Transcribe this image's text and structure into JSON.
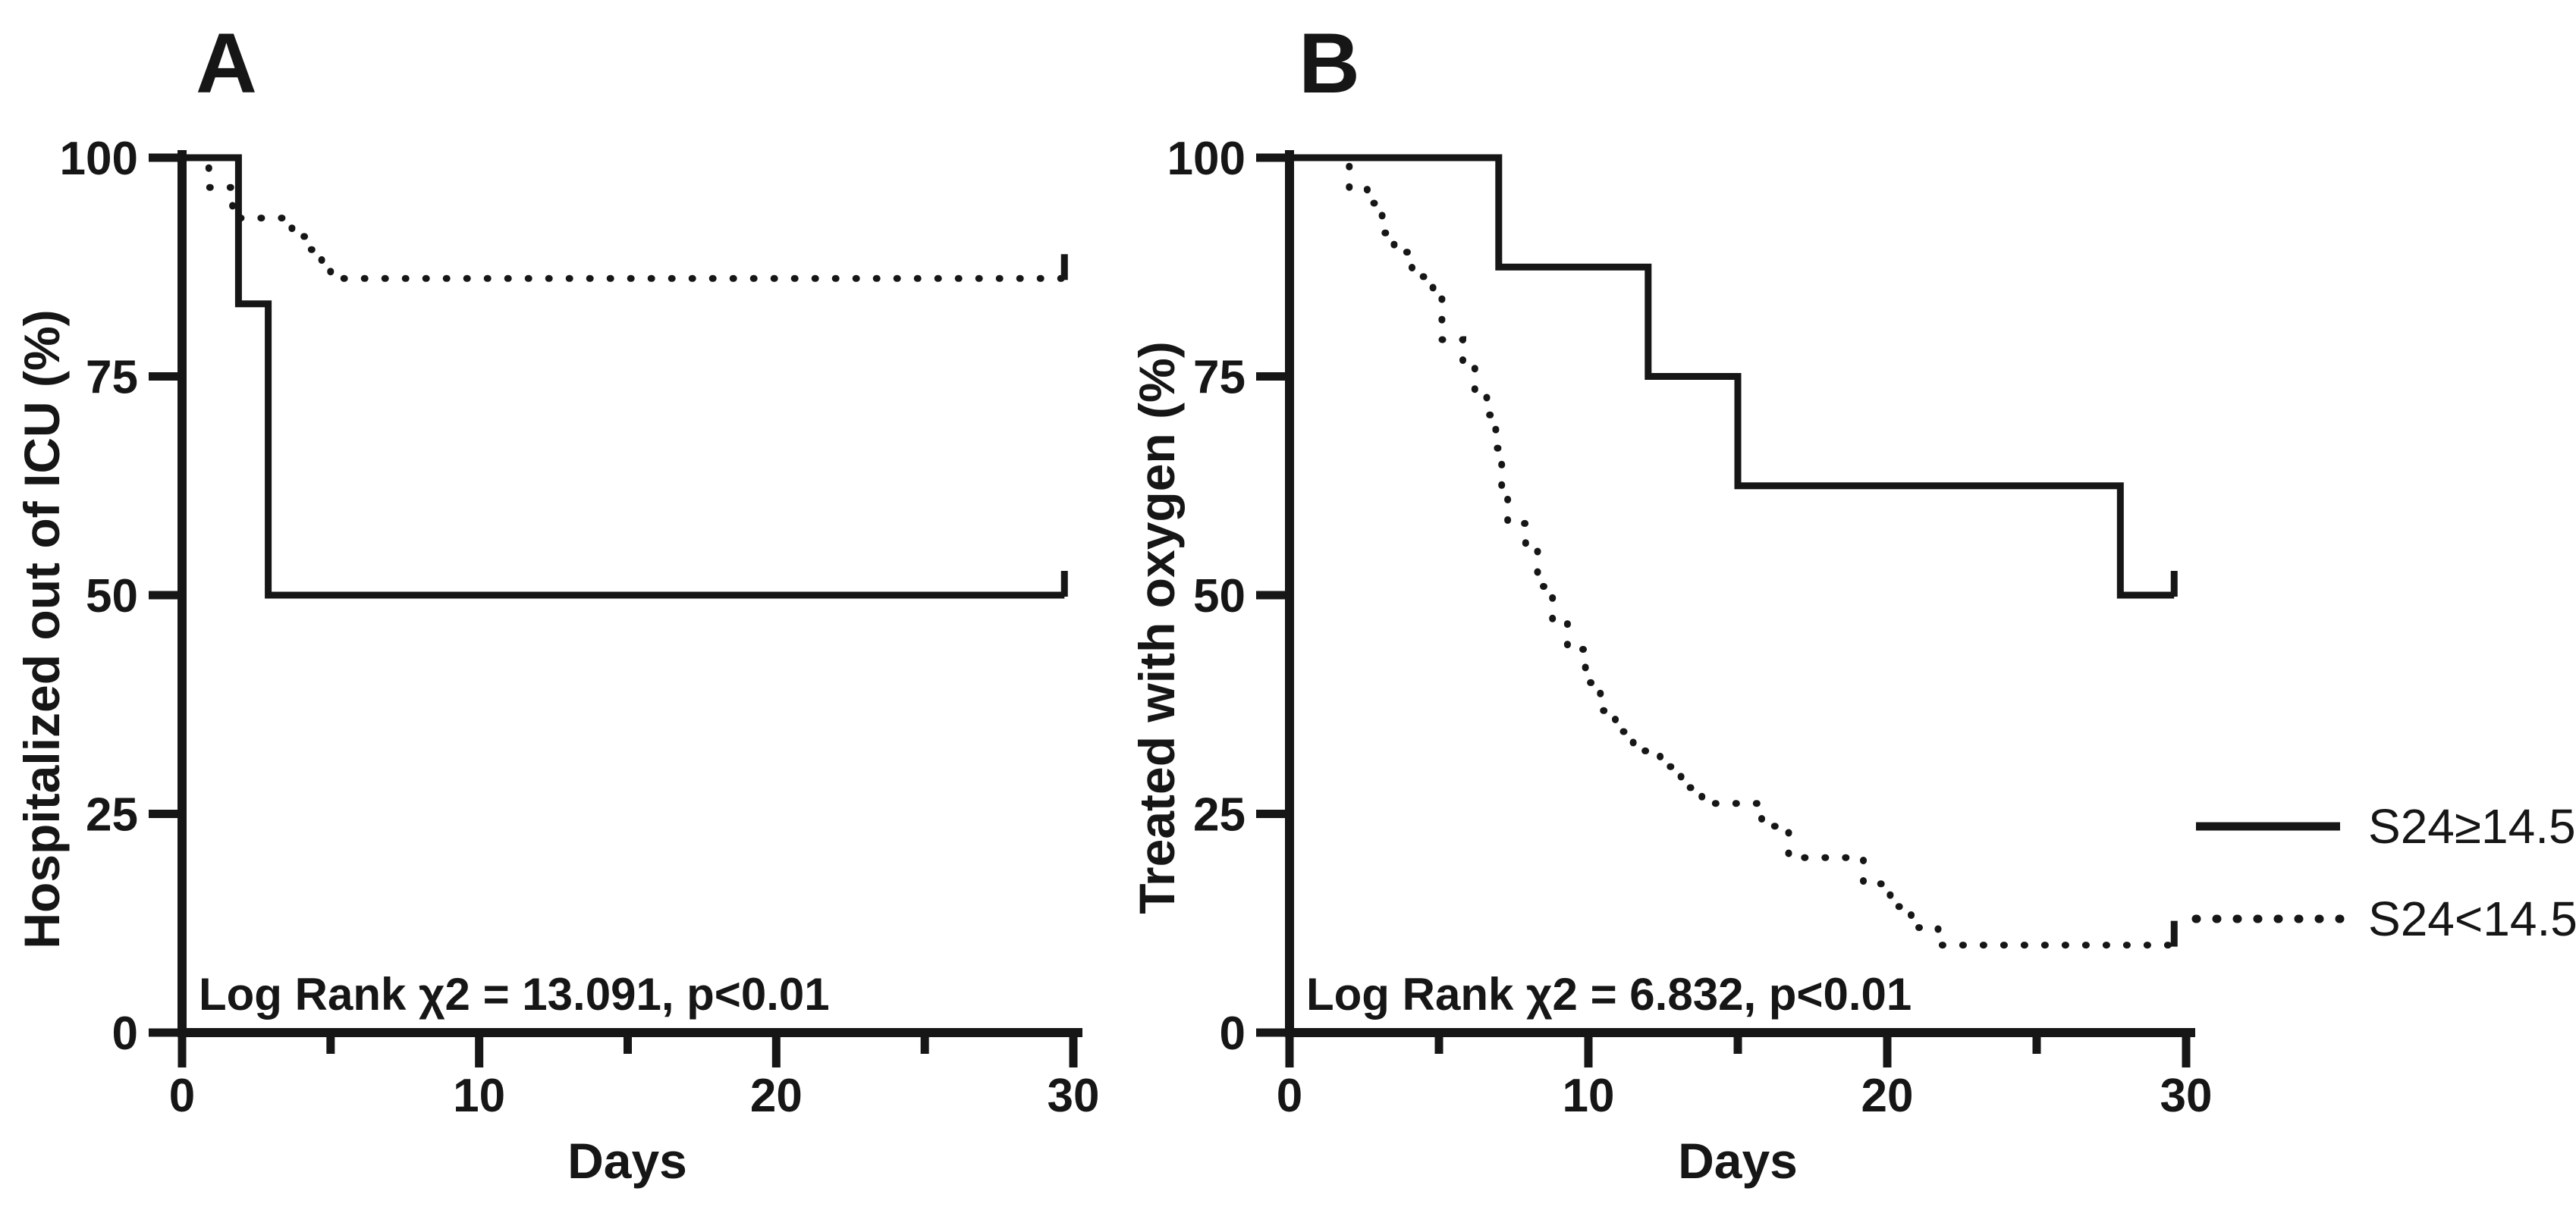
{
  "page": {
    "background": "#ffffff",
    "ink": "#161616"
  },
  "legend": {
    "position": "right-middle",
    "entries": [
      {
        "label": "S24≥14.5",
        "line_style": "solid"
      },
      {
        "label": "S24<14.5",
        "line_style": "dotted"
      }
    ]
  },
  "chart_data": [
    {
      "type": "line",
      "subtype": "kaplan_meier_step",
      "panel_label": "A",
      "ylabel": "Hospitalized out of ICU (%)",
      "xlabel": "Days",
      "annotation": "Log Rank χ2 = 13.091, p<0.01",
      "xlim": [
        0,
        30
      ],
      "ylim": [
        0,
        100
      ],
      "xticks": [
        0,
        10,
        20,
        30
      ],
      "xticks_minor": [
        5,
        15,
        25
      ],
      "yticks": [
        0,
        25,
        50,
        75,
        100
      ],
      "grid": false,
      "series": [
        {
          "name": "S24≥14.5",
          "style": "solid",
          "censored_at_end": true,
          "end_x": 29.7,
          "points": [
            [
              0,
              100
            ],
            [
              1.9,
              83.3
            ],
            [
              2.9,
              50
            ]
          ]
        },
        {
          "name": "S24<14.5",
          "style": "dotted",
          "censored_at_end": true,
          "end_x": 29.7,
          "points": [
            [
              0.55,
              100
            ],
            [
              0.9,
              96.6
            ],
            [
              1.7,
              93.1
            ],
            [
              3.7,
              91.0
            ],
            [
              4.3,
              89.5
            ],
            [
              4.7,
              88.0
            ],
            [
              5.0,
              86.2
            ]
          ]
        }
      ]
    },
    {
      "type": "line",
      "subtype": "kaplan_meier_step",
      "panel_label": "B",
      "ylabel": "Treated with oxygen (%)",
      "xlabel": "Days",
      "annotation": "Log Rank χ2 = 6.832, p<0.01",
      "xlim": [
        0,
        30
      ],
      "ylim": [
        0,
        100
      ],
      "xticks": [
        0,
        10,
        20,
        30
      ],
      "xticks_minor": [
        5,
        15,
        25
      ],
      "yticks": [
        0,
        25,
        50,
        75,
        100
      ],
      "grid": false,
      "series": [
        {
          "name": "S24≥14.5",
          "style": "solid",
          "censored_at_end": true,
          "end_x": 29.6,
          "points": [
            [
              0,
              100
            ],
            [
              7,
              87.5
            ],
            [
              12,
              75
            ],
            [
              15,
              62.5
            ],
            [
              27.8,
              50
            ]
          ]
        },
        {
          "name": "S24<14.5",
          "style": "dotted",
          "censored_at_end": true,
          "end_x": 29.6,
          "points": [
            [
              1.6,
              100
            ],
            [
              2.0,
              96.6
            ],
            [
              2.6,
              94.8
            ],
            [
              3.1,
              91.4
            ],
            [
              3.5,
              89.2
            ],
            [
              4.1,
              86.4
            ],
            [
              4.8,
              84.8
            ],
            [
              5.1,
              79.2
            ],
            [
              5.8,
              76.2
            ],
            [
              6.2,
              73.4
            ],
            [
              6.6,
              70.6
            ],
            [
              6.9,
              66.8
            ],
            [
              7.1,
              62.4
            ],
            [
              7.3,
              58.2
            ],
            [
              7.9,
              55.4
            ],
            [
              8.3,
              51.0
            ],
            [
              8.8,
              46.8
            ],
            [
              9.3,
              43.8
            ],
            [
              9.9,
              40.0
            ],
            [
              10.4,
              36.8
            ],
            [
              10.9,
              34.4
            ],
            [
              11.5,
              32.2
            ],
            [
              12.4,
              30.4
            ],
            [
              13.1,
              28.0
            ],
            [
              13.8,
              26.2
            ],
            [
              15.8,
              23.6
            ],
            [
              16.7,
              20.0
            ],
            [
              19.2,
              17.0
            ],
            [
              20.1,
              14.4
            ],
            [
              20.8,
              12.0
            ],
            [
              21.7,
              10.0
            ]
          ]
        }
      ]
    }
  ]
}
